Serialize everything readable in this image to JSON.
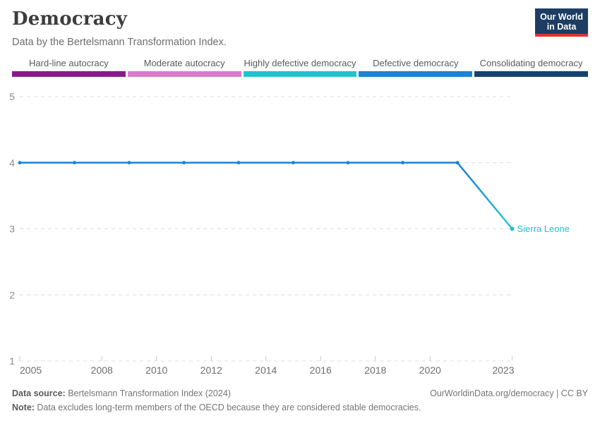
{
  "header": {
    "title": "Democracy",
    "subtitle": "Data by the Bertelsmann Transformation Index.",
    "logo": {
      "line1": "Our World",
      "line2": "in Data",
      "bg_color": "#1d3d63",
      "accent_color": "#dc352f"
    }
  },
  "legend": {
    "items": [
      {
        "label": "Hard-line autocracy",
        "color": "#8a1a8b"
      },
      {
        "label": "Moderate autocracy",
        "color": "#db7bcd"
      },
      {
        "label": "Highly defective democracy",
        "color": "#23c2ce"
      },
      {
        "label": "Defective democracy",
        "color": "#1d83d4"
      },
      {
        "label": "Consolidating democracy",
        "color": "#15416f"
      }
    ]
  },
  "chart_data": {
    "type": "line",
    "title": "Democracy",
    "xlabel": "",
    "ylabel": "",
    "xlim": [
      2005,
      2023
    ],
    "ylim": [
      1,
      5
    ],
    "grid": "horizontal-dashed",
    "x_ticks": [
      2005,
      2008,
      2010,
      2012,
      2014,
      2016,
      2018,
      2020,
      2023
    ],
    "y_ticks": [
      1,
      2,
      3,
      4,
      5
    ],
    "series": [
      {
        "name": "Sierra Leone",
        "line_color": "#1d83d4",
        "end_color": "#23c2ce",
        "label_color": "#23c2ce",
        "x": [
          2005,
          2007,
          2009,
          2011,
          2013,
          2015,
          2017,
          2019,
          2021,
          2023
        ],
        "values": [
          4,
          4,
          4,
          4,
          4,
          4,
          4,
          4,
          4,
          3
        ]
      }
    ],
    "colors": {
      "gridline": "#dcdcdc",
      "tick_mark": "#c9c9c9",
      "y_label": "#8c8c8c",
      "x_label": "#6e6e6e"
    }
  },
  "footer": {
    "source_label": "Data source:",
    "source_text": " Bertelsmann Transformation Index (2024)",
    "right_text": "OurWorldinData.org/democracy | CC BY",
    "note_label": "Note:",
    "note_text": " Data excludes long-term members of the OECD because they are considered stable democracies."
  }
}
